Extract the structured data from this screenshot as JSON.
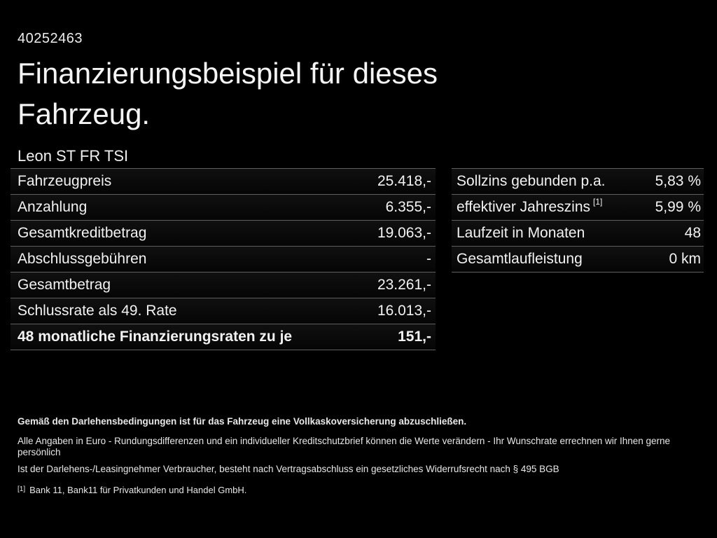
{
  "page": {
    "vehicle_id": "40252463",
    "title": "Finanzierungsbeispiel für dieses Fahrzeug.",
    "vehicle_name": "Leon ST FR TSI"
  },
  "finance_table": {
    "rows": [
      {
        "label": "Fahrzeugpreis",
        "value": "25.418,-"
      },
      {
        "label": "Anzahlung",
        "value": "6.355,-"
      },
      {
        "label": "Gesamtkreditbetrag",
        "value": "19.063,-"
      },
      {
        "label": "Abschlussgebühren",
        "value": "-"
      },
      {
        "label": "Gesamtbetrag",
        "value": "23.261,-"
      },
      {
        "label": "Schlussrate als 49. Rate",
        "value": "16.013,-"
      },
      {
        "label": "48 monatliche Finanzierungsraten zu je",
        "value": "151,-",
        "bold": true
      }
    ]
  },
  "conditions_table": {
    "rows": [
      {
        "label": "Sollzins gebunden p.a.",
        "value": "5,83 %"
      },
      {
        "label": "effektiver Jahreszins",
        "sup": "[1]",
        "value": "5,99 %"
      },
      {
        "label": "Laufzeit in Monaten",
        "value": "48"
      },
      {
        "label": "Gesamtlaufleistung",
        "value": "0 km"
      }
    ]
  },
  "footnotes": {
    "insurance_note": "Gemäß den Darlehensbedingungen ist für das Fahrzeug eine Vollkaskoversicherung abzuschließen.",
    "disclaimer_line1": "Alle Angaben in Euro - Rundungsdifferenzen und ein individueller Kreditschutzbrief können die Werte verändern - Ihr Wunschrate errechnen wir Ihnen gerne persönlich",
    "disclaimer_line2": "Ist der Darlehens-/Leasingnehmer Verbraucher, besteht nach Vertragsabschluss ein gesetzliches Widerrufsrecht nach § 495 BGB",
    "bank_note_marker": "[1]",
    "bank_note": "Bank 11, Bank11 für Privatkunden und Handel GmbH."
  },
  "colors": {
    "background": "#000000",
    "text": "#f2f2f2",
    "separator": "#5f5f5f"
  }
}
